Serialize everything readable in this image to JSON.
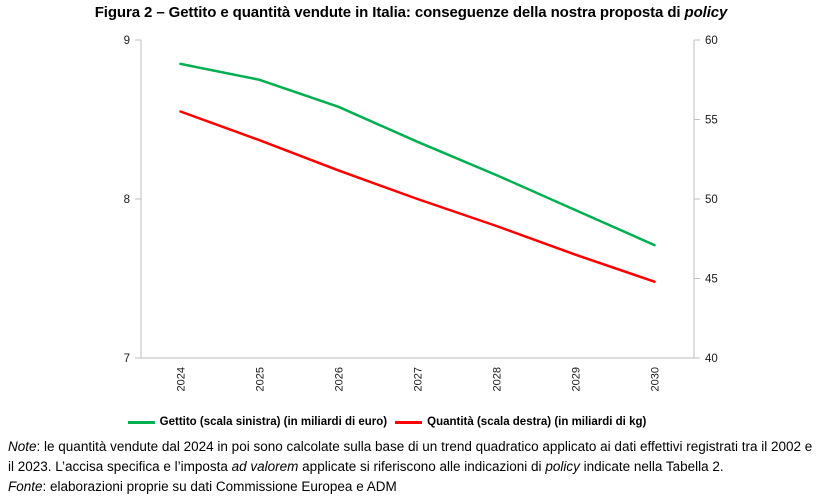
{
  "title": {
    "text": "Figura 2 – Gettito e quantità vendute in Italia: conseguenze della nostra proposta di ",
    "italic_word": "policy"
  },
  "chart_data": {
    "type": "line",
    "categories": [
      "2024",
      "2025",
      "2026",
      "2027",
      "2028",
      "2029",
      "2030"
    ],
    "series": [
      {
        "name": "Gettito (scala sinistra) (in miliardi di euro)",
        "axis": "left",
        "color": "#00B050",
        "values": [
          8.85,
          8.75,
          8.58,
          8.36,
          8.15,
          7.93,
          7.71
        ]
      },
      {
        "name": "Quantità (scala destra) (in miliardi di kg)",
        "axis": "right",
        "color": "#FF0000",
        "values": [
          55.5,
          53.7,
          51.8,
          50.0,
          48.3,
          46.5,
          44.8
        ]
      }
    ],
    "left_axis": {
      "min": 7,
      "max": 9,
      "ticks": [
        9,
        8,
        7
      ]
    },
    "right_axis": {
      "min": 40,
      "max": 60,
      "ticks": [
        60,
        55,
        50,
        45,
        40
      ]
    },
    "grid": false,
    "legend_position": "bottom",
    "axis_line_color": "#BFBFBF",
    "title": "Figura 2 – Gettito e quantità vendute in Italia: conseguenze della nostra proposta di policy"
  },
  "notes": {
    "note_label": "Note",
    "note_before_adv": ": le quantità vendute dal 2024 in poi sono calcolate sulla base di un trend quadratico applicato ai dati effettivi registrati tra il 2002 e il 2023. L’accisa specifica e l’imposta ",
    "ad_valorem": "ad valorem",
    "note_between": " applicate si riferiscono alle indicazioni di ",
    "policy": "policy",
    "note_after": " indicate nella Tabella 2.",
    "fonte_label": "Fonte",
    "fonte_text": ": elaborazioni proprie su dati Commissione Europea e ADM"
  }
}
